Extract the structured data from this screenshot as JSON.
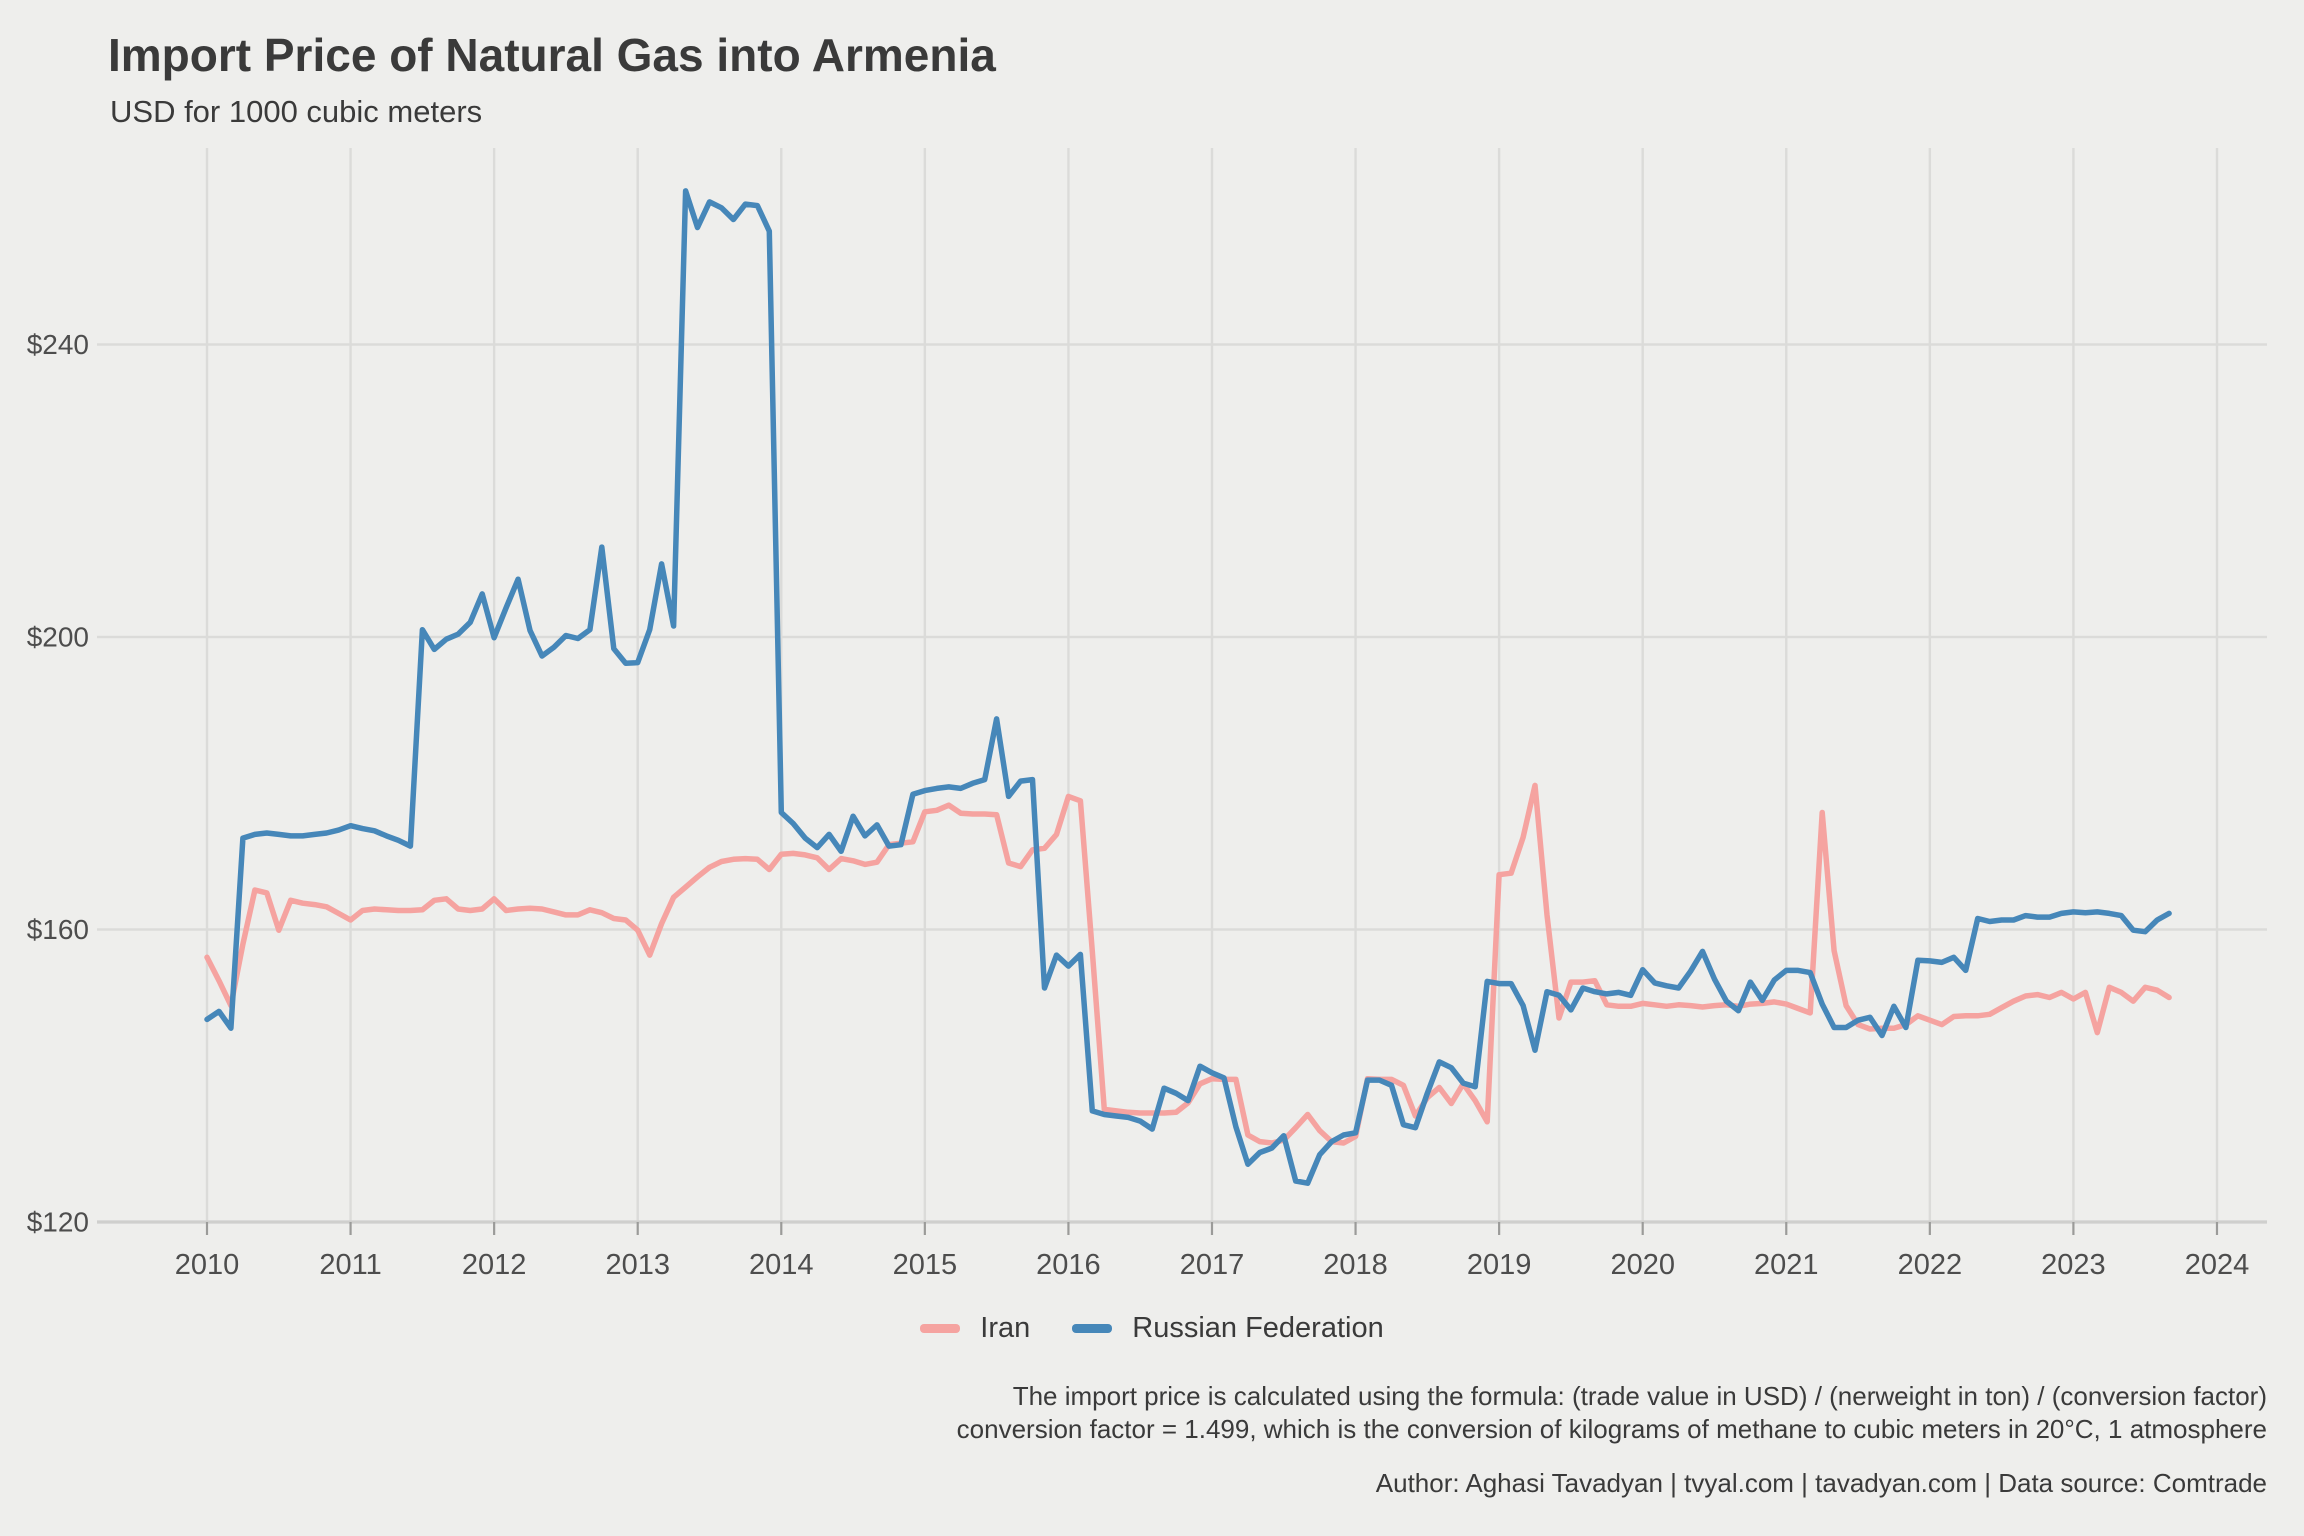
{
  "chart_data": {
    "type": "line",
    "title": "Import Price of Natural Gas into Armenia",
    "subtitle": "USD for 1000 cubic meters",
    "xlabel": "",
    "ylabel": "",
    "frequency": "monthly",
    "x_start_year": 2010,
    "x_start_month": 1,
    "x_tick_years": [
      2010,
      2011,
      2012,
      2013,
      2014,
      2015,
      2016,
      2017,
      2018,
      2019,
      2020,
      2021,
      2022,
      2023,
      2024
    ],
    "y_ticks": [
      {
        "value": 120,
        "label": "$120"
      },
      {
        "value": 160,
        "label": "$160"
      },
      {
        "value": 200,
        "label": "$200"
      },
      {
        "value": 240,
        "label": "$240"
      }
    ],
    "ylim": [
      120,
      267
    ],
    "grid": true,
    "legend_position": "bottom",
    "series": [
      {
        "name": "Iran",
        "color": "#F5A3A0",
        "values": [
          156.2,
          153,
          149.6,
          158,
          165.4,
          165,
          159.9,
          164,
          163.6,
          163.4,
          163.1,
          162.2,
          161.3,
          162.6,
          162.8,
          162.7,
          162.6,
          162.6,
          162.7,
          164,
          164.2,
          162.8,
          162.6,
          162.8,
          164.2,
          162.6,
          162.8,
          162.9,
          162.8,
          162.4,
          162,
          162,
          162.7,
          162.3,
          161.5,
          161.3,
          159.9,
          156.5,
          160.8,
          164.4,
          165.8,
          167.2,
          168.5,
          169.3,
          169.6,
          169.7,
          169.6,
          168.2,
          170.3,
          170.4,
          170.2,
          169.8,
          168.2,
          169.7,
          169.4,
          168.9,
          169.2,
          171.6,
          171.8,
          172,
          176.1,
          176.3,
          177,
          175.9,
          175.8,
          175.8,
          175.7,
          169.1,
          168.6,
          170.9,
          171.1,
          173,
          178.2,
          177.6,
          157,
          135.4,
          135.2,
          135,
          134.9,
          134.9,
          134.9,
          135,
          136.3,
          138.9,
          139.6,
          139.5,
          139.5,
          131.9,
          131,
          130.8,
          131.2,
          132.9,
          134.7,
          132.5,
          131,
          130.8,
          131.7,
          139.6,
          139.5,
          139.5,
          138.7,
          134.5,
          137,
          138.4,
          136.2,
          138.9,
          136.6,
          133.7,
          167.5,
          167.7,
          172.6,
          179.7,
          162,
          147.9,
          152.8,
          152.8,
          153,
          149.7,
          149.5,
          149.5,
          149.9,
          149.7,
          149.5,
          149.7,
          149.6,
          149.4,
          149.6,
          149.7,
          149.5,
          149.8,
          149.9,
          150.1,
          149.8,
          149.2,
          148.6,
          176,
          157.1,
          149.6,
          147,
          146.4,
          146.5,
          146.5,
          147,
          148.2,
          147.6,
          147,
          148.1,
          148.2,
          148.2,
          148.4,
          149.3,
          150.2,
          150.9,
          151.1,
          150.7,
          151.4,
          150.5,
          151.4,
          145.9,
          152.1,
          151.4,
          150.2,
          152.1,
          151.7,
          150.7
        ]
      },
      {
        "name": "Russian Federation",
        "color": "#4687B9",
        "values": [
          147.7,
          148.8,
          146.5,
          172.5,
          173,
          173.2,
          173,
          172.8,
          172.8,
          173,
          173.2,
          173.6,
          174.2,
          173.8,
          173.5,
          172.8,
          172.2,
          171.4,
          201,
          198.3,
          199.7,
          200.4,
          202,
          205.9,
          199.9,
          204,
          207.9,
          200.9,
          197.4,
          198.6,
          200.2,
          199.8,
          201,
          212.3,
          198.4,
          196.4,
          196.5,
          201,
          210,
          201.5,
          261,
          256,
          259.5,
          258.7,
          257.1,
          259.2,
          259,
          255.5,
          176,
          174.5,
          172.5,
          171.2,
          173,
          170.7,
          175.5,
          172.8,
          174.3,
          171.4,
          171.6,
          178.5,
          179,
          179.3,
          179.5,
          179.3,
          180,
          180.5,
          188.8,
          178.2,
          180.3,
          180.5,
          152,
          156.5,
          155,
          156.6,
          135.2,
          134.7,
          134.5,
          134.3,
          133.8,
          132.7,
          138.3,
          137.6,
          136.6,
          141.3,
          140.4,
          139.7,
          133,
          127.9,
          129.5,
          130.1,
          131.8,
          125.6,
          125.3,
          129.2,
          131,
          131.9,
          132.2,
          139.4,
          139.4,
          138.7,
          133.3,
          132.9,
          137.6,
          141.9,
          141.1,
          139,
          138.5,
          152.9,
          152.6,
          152.6,
          149.6,
          143.5,
          151.5,
          151,
          149,
          152,
          151.5,
          151.2,
          151.4,
          151,
          154.5,
          152.7,
          152.3,
          152,
          154.3,
          157,
          153.2,
          150.2,
          148.9,
          152.8,
          150.3,
          153.1,
          154.4,
          154.4,
          154.1,
          149.8,
          146.6,
          146.6,
          147.6,
          148,
          145.5,
          149.5,
          146.6,
          155.8,
          155.7,
          155.5,
          156.2,
          154.4,
          161.5,
          161.1,
          161.3,
          161.3,
          161.9,
          161.7,
          161.7,
          162.2,
          162.4,
          162.3,
          162.4,
          162.2,
          161.9,
          159.9,
          159.7,
          161.3,
          162.2
        ]
      }
    ]
  },
  "captions": {
    "formula_line1": "The import price is calculated using the formula: (trade value in USD) / (nerweight in ton) / (conversion factor)",
    "formula_line2": "conversion factor = 1.499, which is the conversion of kilograms of methane to cubic meters in 20°C, 1 atmosphere",
    "author": "Author: Aghasi Tavadyan    |    tvyal.com    |    tavadyan.com    |    Data source: Comtrade"
  },
  "colors": {
    "background": "#EEEEEC",
    "gridline": "#DBDBD9",
    "axis_line": "#CFCFCD",
    "tick_mark": "#9B9B99",
    "axis_text": "#4D4D4D",
    "text": "#3A3A3A"
  }
}
